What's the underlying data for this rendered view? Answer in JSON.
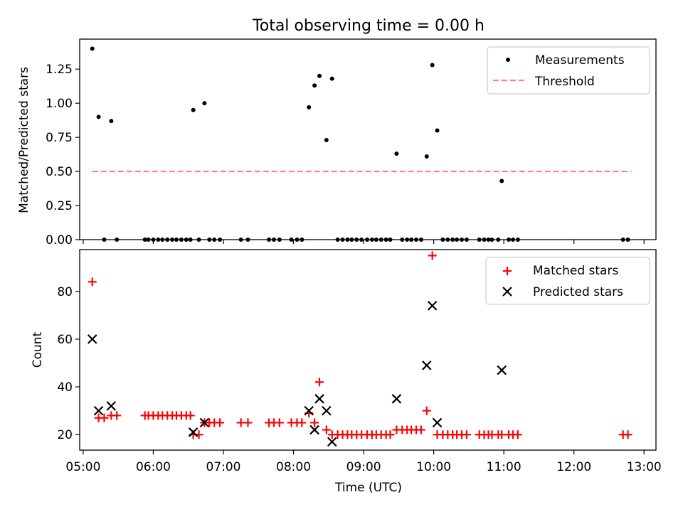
{
  "title": "Total observing time = 0.00 h",
  "chart_data": [
    {
      "type": "scatter",
      "ylabel": "Matched/Predicted stars",
      "xlim": [
        4.95,
        13.17
      ],
      "ylim": [
        0,
        1.47
      ],
      "yticks": [
        0,
        0.25,
        0.5,
        0.75,
        1.0,
        1.25
      ],
      "ytick_labels": [
        "0.00",
        "0.25",
        "0.50",
        "0.75",
        "1.00",
        "1.25"
      ],
      "legend_position": "top-right",
      "threshold": {
        "y": 0.5,
        "x_range": [
          5.13,
          12.82
        ],
        "color": "#ff8080",
        "style": "dashed"
      },
      "series": [
        {
          "name": "Measurements",
          "marker": "dot",
          "color": "#000000",
          "x": [
            5.13,
            5.22,
            5.4,
            6.57,
            6.73,
            8.22,
            8.3,
            8.37,
            8.47,
            8.55,
            9.47,
            9.9,
            9.98,
            10.05,
            10.97,
            5.3,
            5.48,
            5.88,
            5.93,
            6.0,
            6.07,
            6.13,
            6.2,
            6.27,
            6.33,
            6.4,
            6.47,
            6.53,
            6.65,
            6.8,
            6.87,
            6.95,
            7.25,
            7.35,
            7.65,
            7.72,
            7.8,
            7.97,
            8.05,
            8.12,
            8.63,
            8.7,
            8.77,
            8.83,
            8.9,
            8.97,
            9.05,
            9.12,
            9.18,
            9.25,
            9.32,
            9.38,
            9.55,
            9.62,
            9.68,
            9.75,
            9.82,
            10.13,
            10.2,
            10.27,
            10.33,
            10.4,
            10.47,
            10.65,
            10.72,
            10.78,
            10.83,
            10.92,
            11.07,
            11.13,
            11.2,
            12.7,
            12.77
          ],
          "y": [
            1.4,
            0.9,
            0.87,
            0.95,
            1.0,
            0.97,
            1.13,
            1.2,
            0.73,
            1.18,
            0.63,
            0.61,
            1.28,
            0.8,
            0.43,
            0,
            0,
            0,
            0,
            0,
            0,
            0,
            0,
            0,
            0,
            0,
            0,
            0,
            0,
            0,
            0,
            0,
            0,
            0,
            0,
            0,
            0,
            0,
            0,
            0,
            0,
            0,
            0,
            0,
            0,
            0,
            0,
            0,
            0,
            0,
            0,
            0,
            0,
            0,
            0,
            0,
            0,
            0,
            0,
            0,
            0,
            0,
            0,
            0,
            0,
            0,
            0,
            0,
            0,
            0,
            0,
            0,
            0
          ]
        },
        {
          "name": "Threshold",
          "marker": "dashed-line",
          "color": "#ff8080"
        }
      ]
    },
    {
      "type": "scatter",
      "ylabel": "Count",
      "xlabel": "Time (UTC)",
      "xlim": [
        4.95,
        13.17
      ],
      "ylim": [
        13.5,
        97.5
      ],
      "yticks": [
        20,
        40,
        60,
        80
      ],
      "ytick_labels": [
        "20",
        "40",
        "60",
        "80"
      ],
      "xticks": [
        5,
        6,
        7,
        8,
        9,
        10,
        11,
        12,
        13
      ],
      "xtick_labels": [
        "05:00",
        "06:00",
        "07:00",
        "08:00",
        "09:00",
        "10:00",
        "11:00",
        "12:00",
        "13:00"
      ],
      "legend_position": "top-right",
      "series": [
        {
          "name": "Matched stars",
          "marker": "plus",
          "color": "#ff0000",
          "x": [
            5.13,
            5.22,
            5.3,
            5.4,
            5.48,
            5.88,
            5.93,
            6.0,
            6.07,
            6.13,
            6.2,
            6.27,
            6.33,
            6.4,
            6.47,
            6.53,
            6.57,
            6.65,
            6.73,
            6.8,
            6.87,
            6.95,
            7.25,
            7.35,
            7.65,
            7.72,
            7.8,
            7.97,
            8.05,
            8.12,
            8.22,
            8.3,
            8.37,
            8.47,
            8.55,
            8.63,
            8.7,
            8.77,
            8.83,
            8.9,
            8.97,
            9.05,
            9.12,
            9.18,
            9.25,
            9.32,
            9.38,
            9.47,
            9.55,
            9.62,
            9.68,
            9.75,
            9.82,
            9.9,
            9.98,
            10.05,
            10.13,
            10.2,
            10.27,
            10.33,
            10.4,
            10.47,
            10.65,
            10.72,
            10.78,
            10.83,
            10.92,
            10.97,
            11.07,
            11.13,
            11.2,
            12.7,
            12.77
          ],
          "y": [
            84,
            27,
            27,
            28,
            28,
            28,
            28,
            28,
            28,
            28,
            28,
            28,
            28,
            28,
            28,
            28,
            20,
            20,
            25,
            25,
            25,
            25,
            25,
            25,
            25,
            25,
            25,
            25,
            25,
            25,
            29,
            25,
            42,
            22,
            20,
            20,
            20,
            20,
            20,
            20,
            20,
            20,
            20,
            20,
            20,
            20,
            20,
            22,
            22,
            22,
            22,
            22,
            22,
            30,
            95,
            20,
            20,
            20,
            20,
            20,
            20,
            20,
            20,
            20,
            20,
            20,
            20,
            20,
            20,
            20,
            20,
            20,
            20
          ]
        },
        {
          "name": "Predicted stars",
          "marker": "x",
          "color": "#000000",
          "x": [
            5.13,
            5.22,
            5.4,
            6.57,
            6.73,
            8.22,
            8.3,
            8.37,
            8.47,
            8.55,
            9.47,
            9.9,
            9.98,
            10.05,
            10.97
          ],
          "y": [
            60,
            30,
            32,
            21,
            25,
            30,
            22,
            35,
            30,
            17,
            35,
            49,
            74,
            25,
            47
          ]
        }
      ]
    }
  ]
}
